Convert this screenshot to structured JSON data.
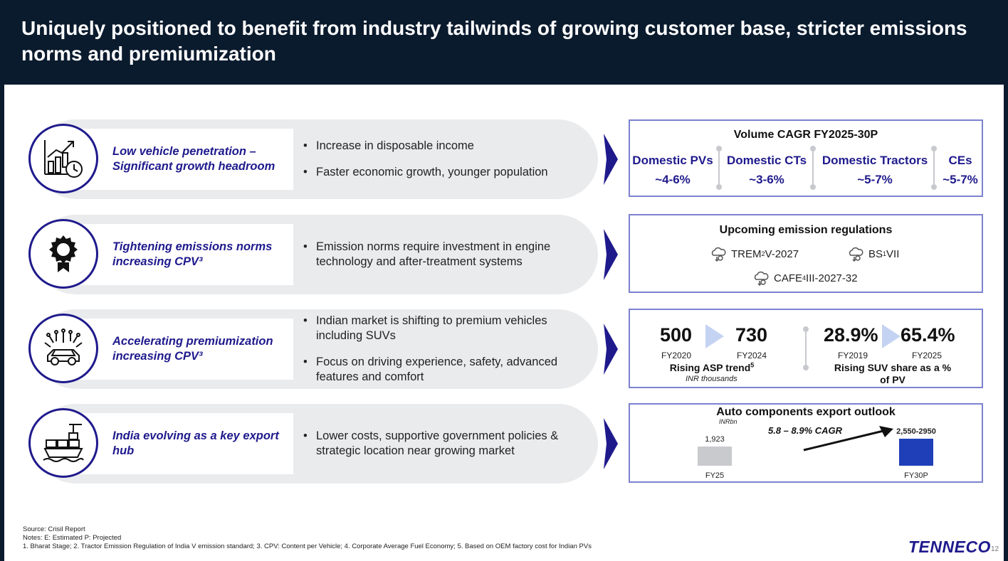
{
  "header": {
    "title": "Uniquely positioned to benefit from industry tailwinds of growing customer base, stricter emissions norms and premiumization"
  },
  "rows": [
    {
      "icon": "growth-chart-clock-icon",
      "label": "Low vehicle penetration – Significant growth headroom",
      "bullets": [
        "Increase in disposable income",
        "Faster economic growth, younger population"
      ]
    },
    {
      "icon": "award-ribbon-icon",
      "label": "Tightening emissions norms increasing CPV³",
      "bullets": [
        "Emission norms require investment in engine technology and after-treatment systems"
      ]
    },
    {
      "icon": "smart-car-icon",
      "label": "Accelerating premiumization increasing CPV³",
      "bullets": [
        "Indian market is shifting to premium vehicles including SUVs",
        "Focus on driving experience, safety, advanced features and comfort"
      ]
    },
    {
      "icon": "cargo-ship-icon",
      "label": "India evolving as a key export hub",
      "bullets": [
        "Lower costs, supportive government policies & strategic location near growing market"
      ]
    }
  ],
  "volume": {
    "title": "Volume CAGR FY2025-30P",
    "segments": [
      {
        "name": "Domestic PVs",
        "value": "~4-6%"
      },
      {
        "name": "Domestic CTs",
        "value": "~3-6%"
      },
      {
        "name": "Domestic Tractors",
        "value": "~5-7%"
      },
      {
        "name": "CEs",
        "value": "~5-7%"
      }
    ]
  },
  "emissions": {
    "title": "Upcoming emission regulations",
    "trem": {
      "name": "TREM",
      "sup": "2",
      "rest": " V-2027"
    },
    "bs": {
      "name": "BS",
      "sup": "1",
      "rest": " VII"
    },
    "cafe": {
      "name": "CAFE",
      "sup": "4",
      "rest": " III-2027-32"
    }
  },
  "premium": {
    "asp": {
      "from_value": "500",
      "from_year": "FY2020",
      "to_value": "730",
      "to_year": "FY2024",
      "caption": "Rising ASP trend",
      "caption_sup": "5",
      "unit": "INR thousands"
    },
    "suv": {
      "from_value": "28.9%",
      "from_year": "FY2019",
      "to_value": "65.4%",
      "to_year": "FY2025",
      "caption": "Rising SUV share as a % of PV"
    }
  },
  "export": {
    "title": "Auto components export outlook",
    "unit": "INRbn",
    "cagr": "5.8 – 8.9% CAGR",
    "bars": [
      {
        "label": "FY25",
        "value_label": "1,923",
        "value": 1923,
        "color": "#c8cacd"
      },
      {
        "label": "FY30P",
        "value_label": "2,550-2950",
        "value": 2750,
        "color": "#1f3fb8"
      }
    ]
  },
  "footnotes": {
    "source": "Source: Crisil Report",
    "notes": "Notes: E: Estimated P: Projected",
    "defs": "1. Bharat Stage; 2. Tractor Emission Regulation of India V emission standard; 3. CPV: Content per Vehicle; 4. Corporate Average Fuel Economy; 5. Based on OEM factory cost for Indian PVs"
  },
  "brand": "TENNECO",
  "page_number": "12",
  "colors": {
    "navy": "#0b1b2e",
    "accent": "#1f1a8c",
    "box_border": "#7b82cf",
    "pill": "#eaebed"
  }
}
